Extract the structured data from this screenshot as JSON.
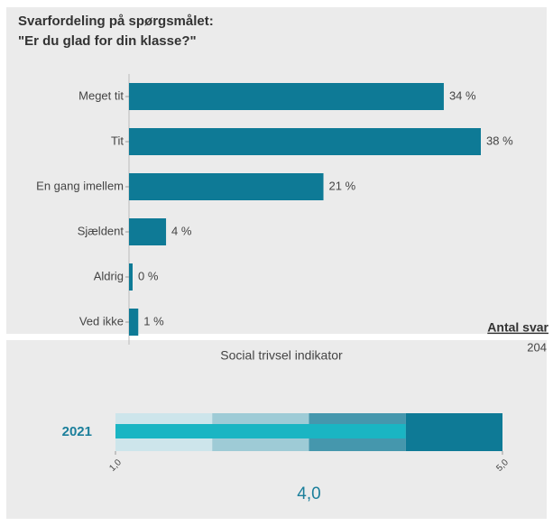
{
  "chart_data": [
    {
      "type": "hbar",
      "title": [
        "Svarfordeling på spørgsmålet:",
        "\"Er du glad for din klasse?\""
      ],
      "categories": [
        "Meget tit",
        "Tit",
        "En gang imellem",
        "Sjældent",
        "Aldrig",
        "Ved ikke"
      ],
      "values": [
        34,
        38,
        21,
        4,
        0,
        1
      ],
      "value_labels": [
        "34 %",
        "38 %",
        "21 %",
        "4 %",
        "0 %",
        "1 %"
      ],
      "color": "#0e7a96",
      "xlim": [
        0,
        38
      ],
      "annotation": {
        "label": "Antal svar",
        "value": 204
      }
    },
    {
      "type": "bullet",
      "title": "Social trivsel indikator",
      "categories": [
        "2021"
      ],
      "values": [
        4
      ],
      "value_labels": [
        "4,0"
      ],
      "color": "#1ab5c3",
      "xlim": [
        1,
        5
      ],
      "xticks": [
        {
          "value": 1,
          "label": "1,0"
        },
        {
          "value": 5,
          "label": "5,0"
        }
      ],
      "bands": [
        2,
        3,
        4,
        5
      ],
      "band_colors": [
        "#cde5eb",
        "#9ecbd6",
        "#4597ad",
        "#0e7a96"
      ]
    }
  ]
}
